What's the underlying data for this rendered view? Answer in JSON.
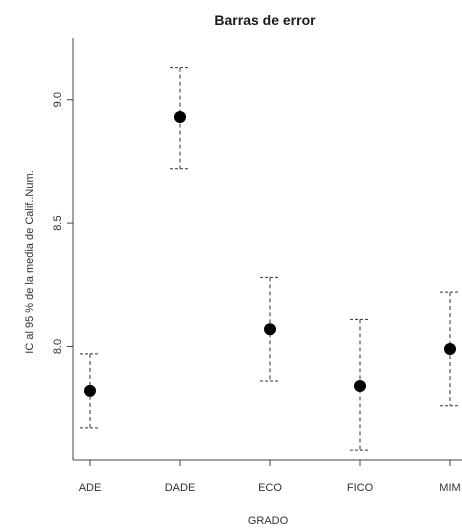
{
  "chart_data": {
    "type": "scatter",
    "title": "Barras de error",
    "xlabel": "GRADO",
    "ylabel": "IC al  95 % de la media de  Calif..Num.",
    "categories": [
      "ADE",
      "DADE",
      "ECO",
      "FICO",
      "MIM"
    ],
    "series": [
      {
        "means": [
          7.82,
          8.93,
          8.07,
          7.84,
          7.99
        ],
        "lower": [
          7.67,
          8.72,
          7.86,
          7.58,
          7.76
        ],
        "upper": [
          7.97,
          9.13,
          8.28,
          8.11,
          8.22
        ]
      }
    ],
    "yticks": [
      8.0,
      8.5,
      9.0
    ],
    "ytick_labels": [
      "8.0",
      "8.5",
      "9.0"
    ],
    "ylim": [
      7.54,
      9.25
    ],
    "grid": false,
    "point_color": "#000000",
    "error_bar_color": "#333333"
  }
}
